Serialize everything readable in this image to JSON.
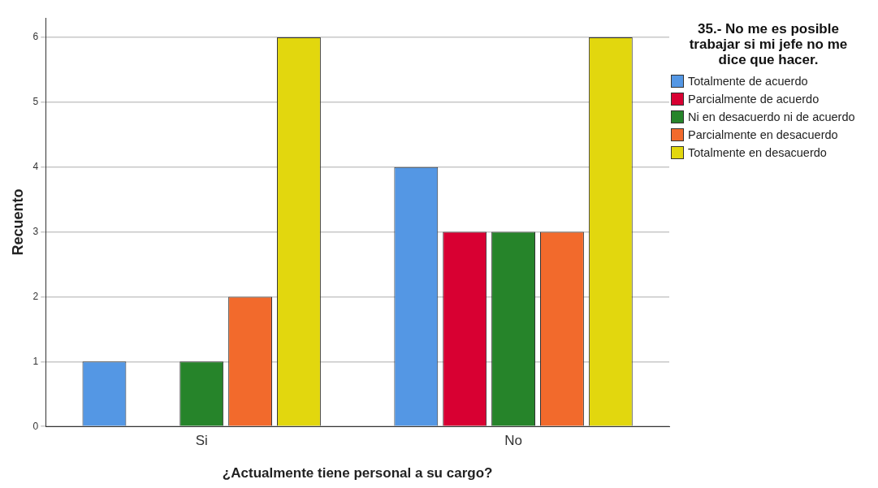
{
  "chart_data": {
    "type": "bar",
    "xlabel": "¿Actualmente tiene personal a su cargo?",
    "ylabel": "Recuento",
    "legend_title": "35.- No me es posible trabajar si mi jefe no me dice que hacer.",
    "categories": [
      "Si",
      "No"
    ],
    "series": [
      {
        "name": "Totalmente de acuerdo",
        "color": "#5497e4",
        "values": [
          1,
          4
        ]
      },
      {
        "name": "Parcialmente de acuerdo",
        "color": "#d80032",
        "values": [
          null,
          3
        ]
      },
      {
        "name": "Ni en desacuerdo ni de acuerdo",
        "color": "#26842a",
        "values": [
          1,
          3
        ]
      },
      {
        "name": "Parcialmente en desacuerdo",
        "color": "#f26a2c",
        "values": [
          2,
          3
        ]
      },
      {
        "name": "Totalmente en desacuerdo",
        "color": "#e2d70e",
        "values": [
          6,
          6
        ]
      }
    ],
    "ylim": [
      0,
      6.3
    ],
    "yticks": [
      0,
      1,
      2,
      3,
      4,
      5,
      6
    ],
    "grid": "y",
    "legend": "right"
  }
}
